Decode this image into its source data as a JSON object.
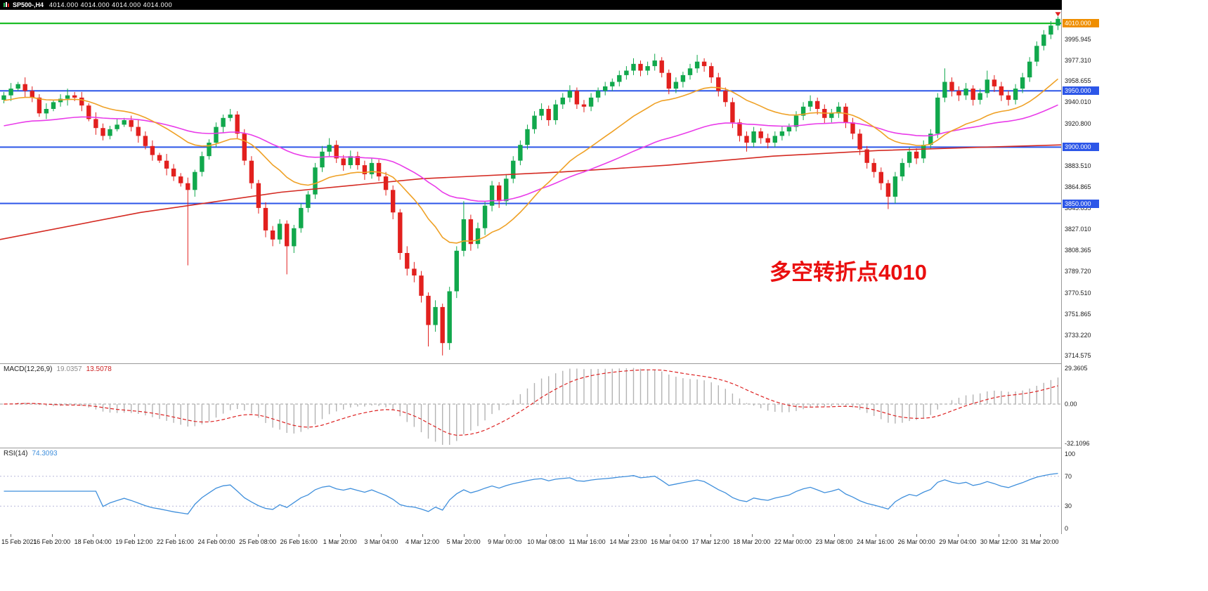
{
  "header": {
    "symbol": "SP500-,H4",
    "ohlc": "4014.000 4014.000 4014.000 4014.000"
  },
  "annotation": {
    "text": "多空转折点4010"
  },
  "colors": {
    "candle_up": "#11a84c",
    "candle_down": "#e2201e",
    "ma_fast_orange": "#efa126",
    "ma_mid_magenta": "#e93ce9",
    "ma_slow_red": "#d42a22",
    "macd_hist": "#b3b3b3",
    "macd_signal": "#dd2222",
    "rsi_line": "#3f8fdc",
    "annotation": "#ea0f0f",
    "level_blue": "#2c56e8",
    "turn_line_green": "#00b50c"
  },
  "chart_data": [
    {
      "type": "candlestick",
      "symbol": "SP500-",
      "timeframe": "H4",
      "ylim": [
        3708,
        4022
      ],
      "y_axis_labels": [
        "3995.945",
        "3977.310",
        "3958.655",
        "3940.010",
        "3920.800",
        "3883.510",
        "3864.865",
        "3845.655",
        "3827.010",
        "3808.365",
        "3789.720",
        "3770.510",
        "3751.865",
        "3733.220",
        "3714.575"
      ],
      "x_labels": [
        "15 Feb 2021",
        "16 Feb 20:00",
        "18 Feb 04:00",
        "19 Feb 12:00",
        "22 Feb 16:00",
        "24 Feb 00:00",
        "25 Feb 08:00",
        "26 Feb 16:00",
        "1 Mar 20:00",
        "3 Mar 04:00",
        "4 Mar 12:00",
        "5 Mar 20:00",
        "9 Mar 00:00",
        "10 Mar 08:00",
        "11 Mar 16:00",
        "14 Mar 23:00",
        "16 Mar 04:00",
        "17 Mar 12:00",
        "18 Mar 20:00",
        "22 Mar 00:00",
        "23 Mar 08:00",
        "24 Mar 16:00",
        "26 Mar 00:00",
        "29 Mar 04:00",
        "30 Mar 12:00",
        "31 Mar 20:00"
      ],
      "hlines": [
        {
          "price": 4010,
          "label": "4010.000",
          "color": "#00b50c",
          "label_bg": "#ef8e00",
          "width": 2
        },
        {
          "price": 3950,
          "label": "3950.000",
          "color": "#2c56e8",
          "label_bg": "#2c56e8",
          "width": 2
        },
        {
          "price": 3900,
          "label": "3900.000",
          "color": "#2c56e8",
          "label_bg": "#2c56e8",
          "width": 2
        },
        {
          "price": 3850,
          "label": "3850.000",
          "color": "#2c56e8",
          "label_bg": "#2c56e8",
          "width": 2
        }
      ],
      "ma_slow_anchors": [
        [
          0,
          3818
        ],
        [
          200,
          3842
        ],
        [
          400,
          3860
        ],
        [
          600,
          3872
        ],
        [
          800,
          3878
        ],
        [
          950,
          3884
        ],
        [
          1100,
          3892
        ],
        [
          1250,
          3897
        ],
        [
          1400,
          3900
        ],
        [
          1510,
          3902
        ]
      ],
      "candles": [
        [
          3942,
          3949,
          3939,
          3946
        ],
        [
          3946,
          3957,
          3941,
          3952
        ],
        [
          3952,
          3958,
          3950,
          3956
        ],
        [
          3956,
          3962,
          3944,
          3950
        ],
        [
          3950,
          3954,
          3940,
          3944
        ],
        [
          3944,
          3947,
          3927,
          3930
        ],
        [
          3930,
          3939,
          3925,
          3934
        ],
        [
          3934,
          3942,
          3932,
          3940
        ],
        [
          3940,
          3947,
          3936,
          3943
        ],
        [
          3943,
          3952,
          3937,
          3946
        ],
        [
          3946,
          3949,
          3941,
          3944
        ],
        [
          3944,
          3949,
          3932,
          3937
        ],
        [
          3937,
          3939,
          3923,
          3925
        ],
        [
          3925,
          3931,
          3911,
          3917
        ],
        [
          3917,
          3921,
          3906,
          3910
        ],
        [
          3910,
          3919,
          3907,
          3916
        ],
        [
          3916,
          3925,
          3914,
          3920
        ],
        [
          3920,
          3926,
          3918,
          3924
        ],
        [
          3924,
          3928,
          3914,
          3918
        ],
        [
          3918,
          3924,
          3904,
          3910
        ],
        [
          3910,
          3914,
          3898,
          3901
        ],
        [
          3901,
          3906,
          3888,
          3893
        ],
        [
          3893,
          3895,
          3886,
          3888
        ],
        [
          3888,
          3894,
          3875,
          3881
        ],
        [
          3881,
          3885,
          3870,
          3874
        ],
        [
          3874,
          3877,
          3865,
          3868
        ],
        [
          3868,
          3873,
          3795,
          3862
        ],
        [
          3862,
          3880,
          3856,
          3878
        ],
        [
          3878,
          3896,
          3874,
          3892
        ],
        [
          3892,
          3907,
          3889,
          3904
        ],
        [
          3904,
          3922,
          3900,
          3918
        ],
        [
          3918,
          3929,
          3913,
          3926
        ],
        [
          3926,
          3934,
          3923,
          3929
        ],
        [
          3929,
          3932,
          3908,
          3912
        ],
        [
          3912,
          3916,
          3884,
          3888
        ],
        [
          3888,
          3892,
          3863,
          3868
        ],
        [
          3868,
          3871,
          3841,
          3846
        ],
        [
          3846,
          3851,
          3820,
          3826
        ],
        [
          3826,
          3830,
          3812,
          3818
        ],
        [
          3818,
          3836,
          3814,
          3832
        ],
        [
          3832,
          3835,
          3787,
          3812
        ],
        [
          3812,
          3831,
          3806,
          3828
        ],
        [
          3828,
          3850,
          3824,
          3846
        ],
        [
          3846,
          3861,
          3842,
          3858
        ],
        [
          3858,
          3886,
          3854,
          3882
        ],
        [
          3882,
          3901,
          3878,
          3896
        ],
        [
          3896,
          3908,
          3892,
          3902
        ],
        [
          3902,
          3906,
          3886,
          3890
        ],
        [
          3890,
          3893,
          3879,
          3884
        ],
        [
          3884,
          3897,
          3881,
          3892
        ],
        [
          3892,
          3896,
          3880,
          3884
        ],
        [
          3884,
          3888,
          3871,
          3876
        ],
        [
          3876,
          3890,
          3872,
          3886
        ],
        [
          3886,
          3889,
          3870,
          3874
        ],
        [
          3874,
          3878,
          3857,
          3862
        ],
        [
          3862,
          3866,
          3836,
          3842
        ],
        [
          3842,
          3845,
          3800,
          3806
        ],
        [
          3806,
          3812,
          3786,
          3792
        ],
        [
          3792,
          3798,
          3780,
          3786
        ],
        [
          3786,
          3790,
          3762,
          3768
        ],
        [
          3768,
          3771,
          3723,
          3742
        ],
        [
          3742,
          3764,
          3736,
          3758
        ],
        [
          3758,
          3761,
          3715,
          3726
        ],
        [
          3726,
          3776,
          3720,
          3772
        ],
        [
          3772,
          3812,
          3766,
          3808
        ],
        [
          3808,
          3852,
          3803,
          3836
        ],
        [
          3836,
          3840,
          3808,
          3814
        ],
        [
          3814,
          3833,
          3810,
          3828
        ],
        [
          3828,
          3852,
          3822,
          3848
        ],
        [
          3848,
          3870,
          3843,
          3866
        ],
        [
          3866,
          3869,
          3846,
          3852
        ],
        [
          3852,
          3876,
          3848,
          3872
        ],
        [
          3872,
          3892,
          3868,
          3888
        ],
        [
          3888,
          3906,
          3884,
          3902
        ],
        [
          3902,
          3920,
          3898,
          3916
        ],
        [
          3916,
          3932,
          3912,
          3928
        ],
        [
          3928,
          3939,
          3924,
          3934
        ],
        [
          3934,
          3937,
          3919,
          3924
        ],
        [
          3924,
          3942,
          3920,
          3938
        ],
        [
          3938,
          3948,
          3934,
          3944
        ],
        [
          3944,
          3955,
          3940,
          3950
        ],
        [
          3950,
          3953,
          3934,
          3938
        ],
        [
          3938,
          3942,
          3931,
          3936
        ],
        [
          3936,
          3948,
          3932,
          3944
        ],
        [
          3944,
          3953,
          3940,
          3950
        ],
        [
          3950,
          3958,
          3946,
          3954
        ],
        [
          3954,
          3961,
          3950,
          3958
        ],
        [
          3958,
          3968,
          3954,
          3964
        ],
        [
          3964,
          3972,
          3960,
          3968
        ],
        [
          3968,
          3979,
          3964,
          3974
        ],
        [
          3974,
          3977,
          3963,
          3968
        ],
        [
          3968,
          3976,
          3964,
          3972
        ],
        [
          3972,
          3983,
          3968,
          3977
        ],
        [
          3977,
          3980,
          3962,
          3966
        ],
        [
          3966,
          3969,
          3947,
          3952
        ],
        [
          3952,
          3962,
          3948,
          3958
        ],
        [
          3958,
          3967,
          3953,
          3964
        ],
        [
          3964,
          3974,
          3960,
          3970
        ],
        [
          3970,
          3982,
          3966,
          3976
        ],
        [
          3976,
          3979,
          3967,
          3972
        ],
        [
          3972,
          3975,
          3957,
          3962
        ],
        [
          3962,
          3966,
          3945,
          3950
        ],
        [
          3950,
          3953,
          3936,
          3940
        ],
        [
          3940,
          3944,
          3917,
          3922
        ],
        [
          3922,
          3925,
          3905,
          3910
        ],
        [
          3910,
          3914,
          3896,
          3904
        ],
        [
          3904,
          3918,
          3900,
          3914
        ],
        [
          3914,
          3917,
          3903,
          3908
        ],
        [
          3908,
          3912,
          3899,
          3904
        ],
        [
          3904,
          3914,
          3900,
          3910
        ],
        [
          3910,
          3919,
          3906,
          3914
        ],
        [
          3914,
          3921,
          3910,
          3918
        ],
        [
          3918,
          3932,
          3914,
          3928
        ],
        [
          3928,
          3940,
          3924,
          3936
        ],
        [
          3936,
          3946,
          3932,
          3941
        ],
        [
          3941,
          3944,
          3929,
          3934
        ],
        [
          3934,
          3938,
          3921,
          3926
        ],
        [
          3926,
          3934,
          3922,
          3930
        ],
        [
          3930,
          3940,
          3926,
          3936
        ],
        [
          3936,
          3939,
          3917,
          3922
        ],
        [
          3922,
          3926,
          3907,
          3912
        ],
        [
          3912,
          3916,
          3893,
          3898
        ],
        [
          3898,
          3901,
          3881,
          3886
        ],
        [
          3886,
          3890,
          3873,
          3878
        ],
        [
          3878,
          3882,
          3862,
          3868
        ],
        [
          3868,
          3871,
          3845,
          3856
        ],
        [
          3856,
          3878,
          3850,
          3874
        ],
        [
          3874,
          3890,
          3870,
          3886
        ],
        [
          3886,
          3900,
          3882,
          3896
        ],
        [
          3896,
          3899,
          3885,
          3890
        ],
        [
          3890,
          3906,
          3886,
          3902
        ],
        [
          3902,
          3916,
          3898,
          3912
        ],
        [
          3912,
          3948,
          3908,
          3944
        ],
        [
          3944,
          3970,
          3940,
          3958
        ],
        [
          3958,
          3962,
          3945,
          3950
        ],
        [
          3950,
          3954,
          3941,
          3946
        ],
        [
          3946,
          3957,
          3942,
          3952
        ],
        [
          3952,
          3955,
          3937,
          3942
        ],
        [
          3942,
          3952,
          3938,
          3948
        ],
        [
          3948,
          3968,
          3944,
          3960
        ],
        [
          3960,
          3964,
          3949,
          3954
        ],
        [
          3954,
          3958,
          3941,
          3946
        ],
        [
          3946,
          3950,
          3937,
          3942
        ],
        [
          3942,
          3956,
          3938,
          3952
        ],
        [
          3952,
          3966,
          3948,
          3962
        ],
        [
          3962,
          3980,
          3958,
          3976
        ],
        [
          3976,
          3994,
          3972,
          3990
        ],
        [
          3990,
          4004,
          3986,
          4000
        ],
        [
          4000,
          4012,
          3996,
          4008
        ],
        [
          4008,
          4016,
          4004,
          4014
        ]
      ]
    },
    {
      "type": "macd",
      "label": "MACD(12,26,9)",
      "params": [
        12,
        26,
        9
      ],
      "main_value": "19.0357",
      "signal_value": "13.5078",
      "ylim": [
        -32.1096,
        29.3605
      ],
      "y_axis_labels": [
        "29.3605",
        "0.00",
        "-32.1096"
      ]
    },
    {
      "type": "rsi",
      "label": "RSI(14)",
      "period": 14,
      "value": "74.3093",
      "levels": [
        70,
        30
      ],
      "ylim": [
        0,
        100
      ],
      "y_axis_labels": [
        "100",
        "70",
        "30",
        "0"
      ]
    }
  ]
}
